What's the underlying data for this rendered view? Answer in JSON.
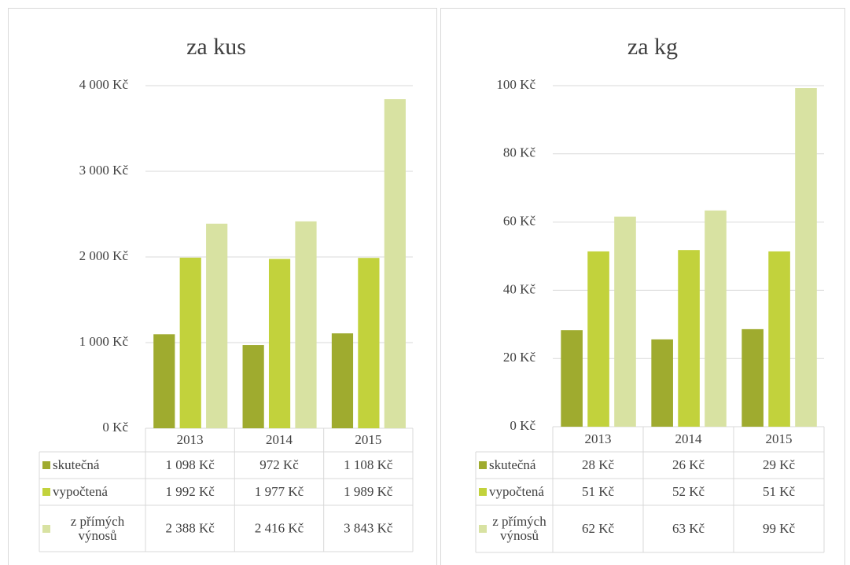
{
  "chart_data": [
    {
      "type": "bar",
      "title": "za kus",
      "categories": [
        "2013",
        "2014",
        "2015"
      ],
      "series": [
        {
          "name": "skutečná",
          "color": "#9fab2f",
          "values": [
            1098,
            972,
            1108
          ],
          "value_labels": [
            "1 098 Kč",
            "972 Kč",
            "1 108 Kč"
          ]
        },
        {
          "name": "vypočtená",
          "color": "#c2d23c",
          "values": [
            1992,
            1977,
            1989
          ],
          "value_labels": [
            "1 992 Kč",
            "1 977 Kč",
            "1 989 Kč"
          ]
        },
        {
          "name": "z přímých výnosů",
          "color": "#d8e2a2",
          "values": [
            2388,
            2416,
            3843
          ],
          "value_labels": [
            "2 388 Kč",
            "2 416 Kč",
            "3 843 Kč"
          ]
        }
      ],
      "ylim": [
        0,
        4000
      ],
      "yticks": [
        {
          "value": 0,
          "label": "0 Kč"
        },
        {
          "value": 1000,
          "label": "1 000 Kč"
        },
        {
          "value": 2000,
          "label": "2 000 Kč"
        },
        {
          "value": 3000,
          "label": "3 000 Kč"
        },
        {
          "value": 4000,
          "label": "4 000 Kč"
        }
      ],
      "grid": true
    },
    {
      "type": "bar",
      "title": "za kg",
      "categories": [
        "2013",
        "2014",
        "2015"
      ],
      "series": [
        {
          "name": "skutečná",
          "color": "#9fab2f",
          "values": [
            28.3,
            25.6,
            28.6
          ],
          "value_labels": [
            "28 Kč",
            "26 Kč",
            "29 Kč"
          ]
        },
        {
          "name": "vypočtená",
          "color": "#c2d23c",
          "values": [
            51.4,
            51.8,
            51.4
          ],
          "value_labels": [
            "51 Kč",
            "52 Kč",
            "51 Kč"
          ]
        },
        {
          "name": "z přímých výnosů",
          "color": "#d8e2a2",
          "values": [
            61.6,
            63.4,
            99.3
          ],
          "value_labels": [
            "62 Kč",
            "63 Kč",
            "99 Kč"
          ]
        }
      ],
      "ylim": [
        0,
        100
      ],
      "yticks": [
        {
          "value": 0,
          "label": "0 Kč"
        },
        {
          "value": 20,
          "label": "20 Kč"
        },
        {
          "value": 40,
          "label": "40 Kč"
        },
        {
          "value": 60,
          "label": "60 Kč"
        },
        {
          "value": 80,
          "label": "80 Kč"
        },
        {
          "value": 100,
          "label": "100 Kč"
        }
      ],
      "grid": true
    }
  ]
}
